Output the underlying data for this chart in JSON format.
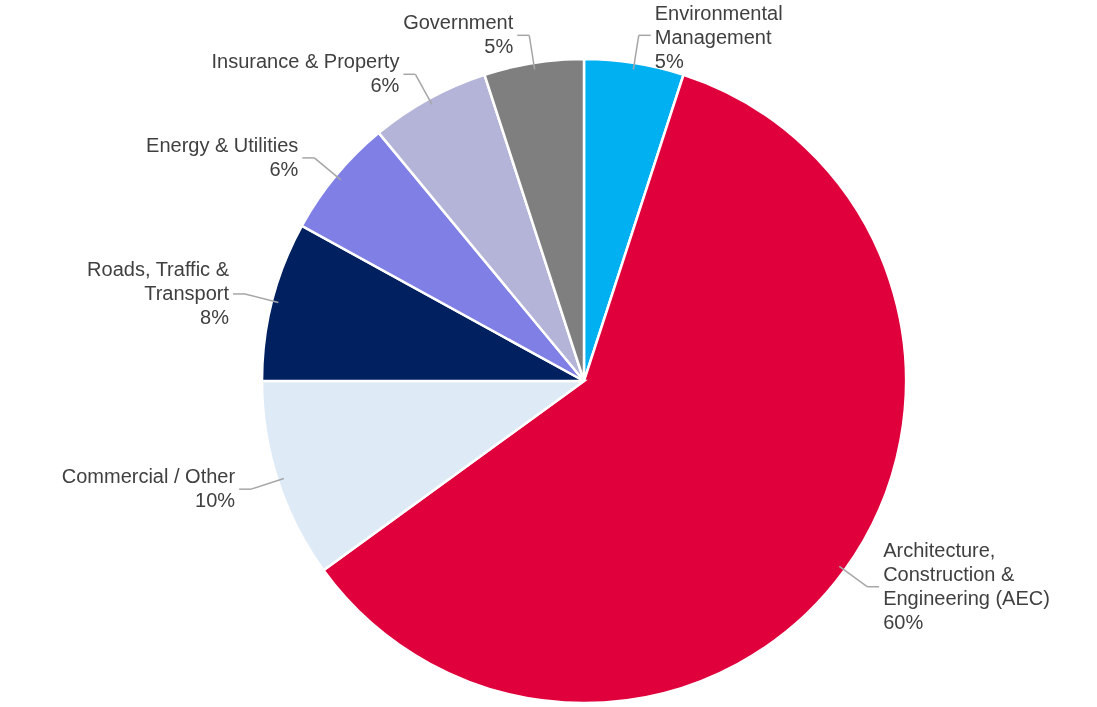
{
  "chart_data": {
    "type": "pie",
    "categories": [
      "Environmental\nManagement",
      "Architecture,\nConstruction &\nEngineering (AEC)",
      "Commercial / Other",
      "Roads, Traffic &\nTransport",
      "Energy & Utilities",
      "Insurance & Property",
      "Government"
    ],
    "values": [
      5,
      60,
      10,
      8,
      6,
      6,
      5
    ],
    "value_labels": [
      "5%",
      "60%",
      "10%",
      "8%",
      "6%",
      "6%",
      "5%"
    ],
    "colors": [
      "#00b0f0",
      "#e0003c",
      "#deebf7",
      "#002060",
      "#7f7fe6",
      "#b4b4d8",
      "#7f7f80"
    ]
  }
}
